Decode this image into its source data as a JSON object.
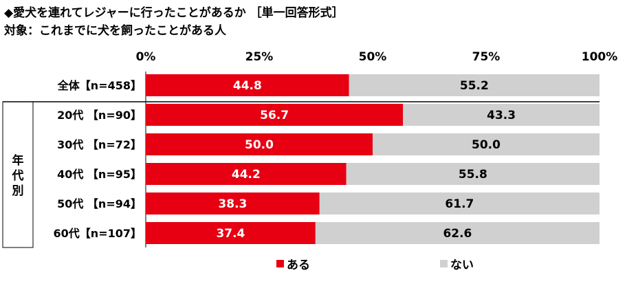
{
  "title": "◆愛犬を連れてレジャーに行ったことがあるか ［単一回答形式］",
  "subtitle": "対象：これまでに犬を飼ったことがある人",
  "colors": {
    "series_a": "#e60012",
    "series_b": "#d0d0d0"
  },
  "chart_data": {
    "type": "bar",
    "orientation": "horizontal",
    "stacked": true,
    "xlim": [
      0,
      100
    ],
    "ticks": [
      "0%",
      "25%",
      "50%",
      "75%",
      "100%"
    ],
    "group_label": "年代別",
    "categories": [
      "全体【n=458】",
      "20代 【n=90】",
      "30代 【n=72】",
      "40代 【n=95】",
      "50代 【n=94】",
      "60代【n=107】"
    ],
    "series": [
      {
        "name": "ある",
        "values": [
          44.8,
          56.7,
          50.0,
          44.2,
          38.3,
          37.4
        ]
      },
      {
        "name": "ない",
        "values": [
          55.2,
          43.3,
          50.0,
          55.8,
          61.7,
          62.6
        ]
      }
    ],
    "legend_position": "bottom"
  }
}
